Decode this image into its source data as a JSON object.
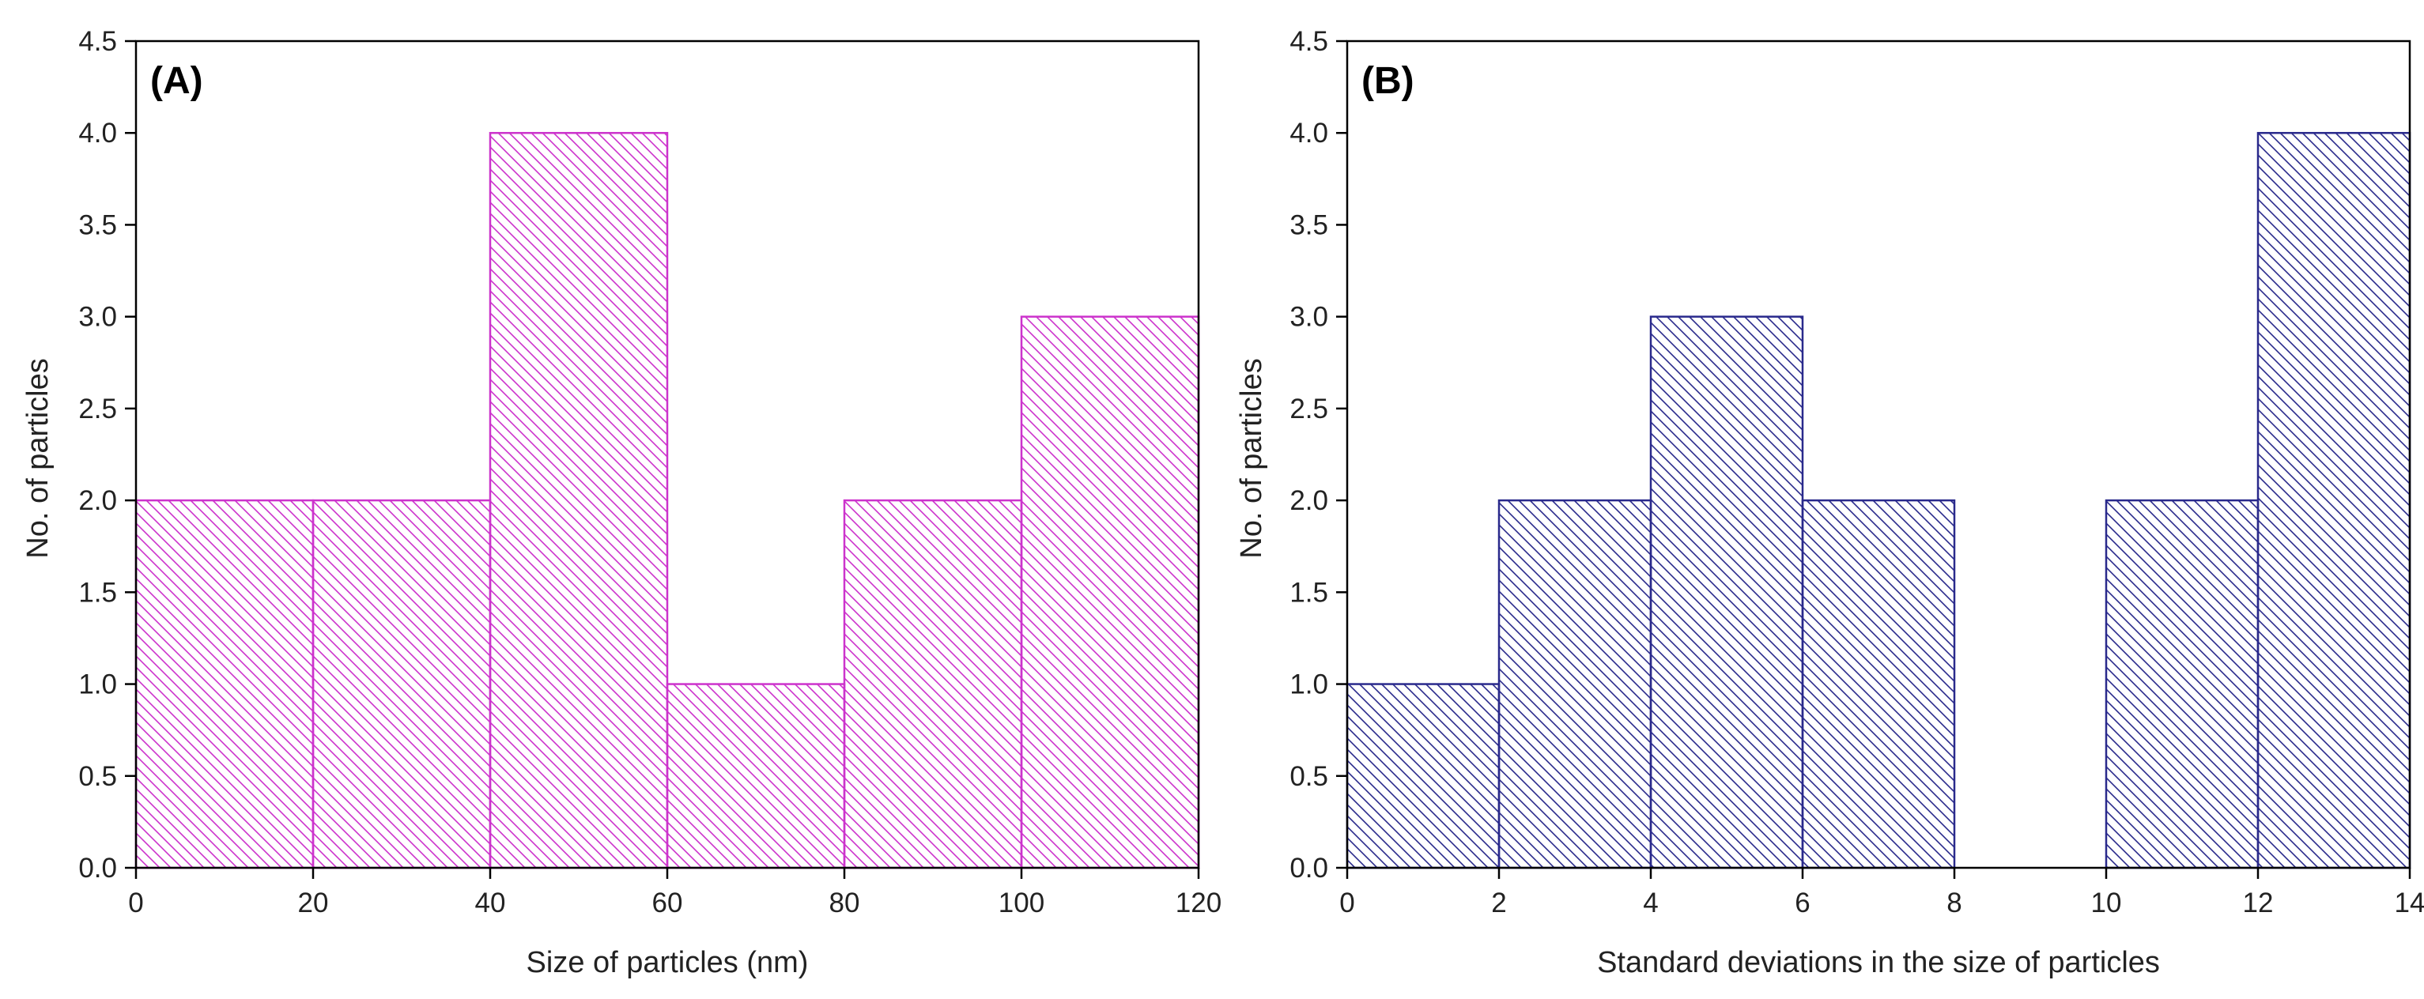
{
  "chart_data": [
    {
      "type": "bar",
      "subtype": "histogram",
      "panel_label": "(A)",
      "title": "",
      "xlabel": "Size of particles (nm)",
      "ylabel": "No. of particles",
      "xlim": [
        0,
        120
      ],
      "ylim": [
        0,
        4.5
      ],
      "xticks": [
        "0",
        "20",
        "40",
        "60",
        "80",
        "100",
        "120"
      ],
      "yticks": [
        "0.0",
        "0.5",
        "1.0",
        "1.5",
        "2.0",
        "2.5",
        "3.0",
        "3.5",
        "4.0",
        "4.5"
      ],
      "bins": [
        {
          "start": 0,
          "end": 20,
          "value": 2
        },
        {
          "start": 20,
          "end": 40,
          "value": 2
        },
        {
          "start": 40,
          "end": 60,
          "value": 4
        },
        {
          "start": 60,
          "end": 80,
          "value": 1
        },
        {
          "start": 80,
          "end": 100,
          "value": 2
        },
        {
          "start": 100,
          "end": 120,
          "value": 3
        }
      ],
      "color": "#cc33cc",
      "grid": false
    },
    {
      "type": "bar",
      "subtype": "histogram",
      "panel_label": "(B)",
      "title": "",
      "xlabel": "Standard deviations in the size of particles",
      "ylabel": "No. of particles",
      "xlim": [
        0,
        14
      ],
      "ylim": [
        0,
        4.5
      ],
      "xticks": [
        "0",
        "2",
        "4",
        "6",
        "8",
        "10",
        "12",
        "14"
      ],
      "yticks": [
        "0.0",
        "0.5",
        "1.0",
        "1.5",
        "2.0",
        "2.5",
        "3.0",
        "3.5",
        "4.0",
        "4.5"
      ],
      "bins": [
        {
          "start": 0,
          "end": 2,
          "value": 1
        },
        {
          "start": 2,
          "end": 4,
          "value": 2
        },
        {
          "start": 4,
          "end": 6,
          "value": 3
        },
        {
          "start": 6,
          "end": 8,
          "value": 2
        },
        {
          "start": 8,
          "end": 10,
          "value": 0
        },
        {
          "start": 10,
          "end": 12,
          "value": 2
        },
        {
          "start": 12,
          "end": 14,
          "value": 4
        }
      ],
      "color": "#2a2a8c",
      "grid": false
    }
  ]
}
